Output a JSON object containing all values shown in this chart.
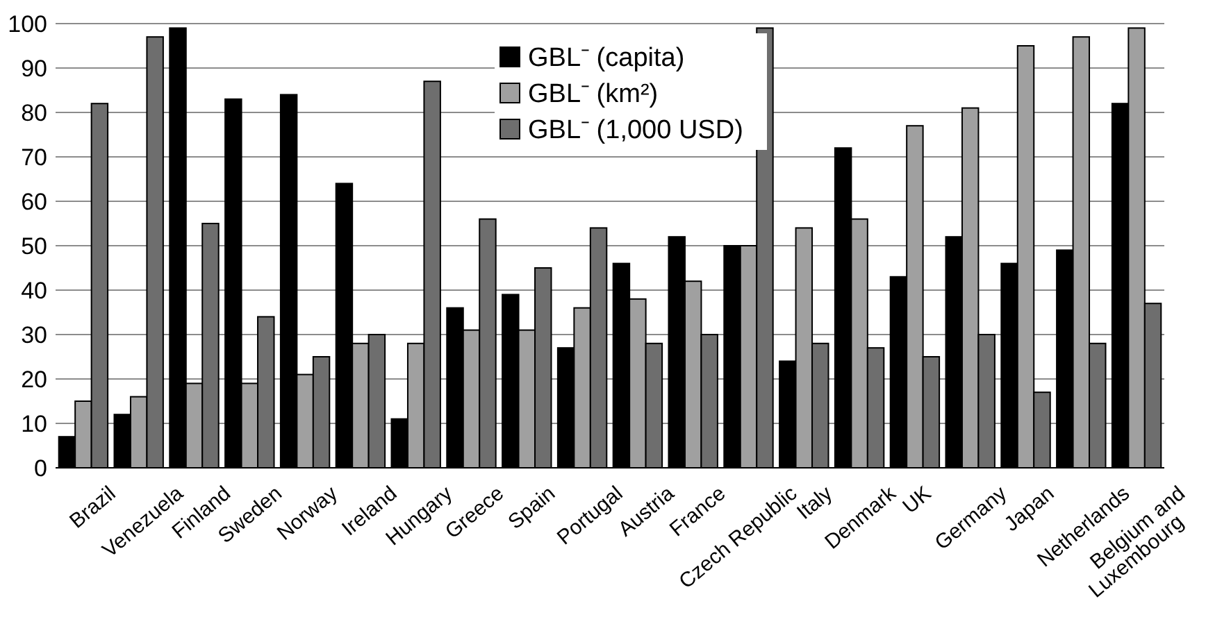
{
  "chart_data": {
    "type": "bar",
    "categories": [
      "Brazil",
      "Venezuela",
      "Finland",
      "Sweden",
      "Norway",
      "Ireland",
      "Hungary",
      "Greece",
      "Spain",
      "Portugal",
      "Austria",
      "France",
      "Czech Republic",
      "Italy",
      "Denmark",
      "UK",
      "Germany",
      "Japan",
      "Netherlands",
      "Belgium and Luxembourg"
    ],
    "series": [
      {
        "name": "GBL⁻ (capita)",
        "color": "#000000",
        "values": [
          7,
          12,
          99,
          83,
          84,
          64,
          11,
          36,
          39,
          27,
          46,
          52,
          50,
          24,
          72,
          43,
          52,
          46,
          49,
          82
        ]
      },
      {
        "name": "GBL⁻ (km²)",
        "color": "#a0a0a0",
        "values": [
          15,
          16,
          19,
          19,
          21,
          28,
          28,
          31,
          31,
          36,
          38,
          42,
          50,
          54,
          56,
          77,
          81,
          95,
          97,
          99
        ]
      },
      {
        "name": "GBL⁻ (1,000 USD)",
        "color": "#6e6e6e",
        "values": [
          82,
          97,
          55,
          34,
          25,
          30,
          87,
          56,
          45,
          54,
          28,
          30,
          99,
          28,
          27,
          25,
          30,
          17,
          28,
          37
        ]
      }
    ],
    "ylim": [
      0,
      100
    ],
    "yticks": [
      0,
      10,
      20,
      30,
      40,
      50,
      60,
      70,
      80,
      90,
      100
    ],
    "grid": "y",
    "legend": "top"
  }
}
